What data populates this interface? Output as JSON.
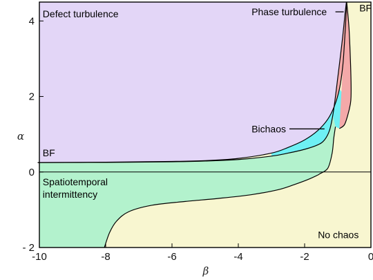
{
  "chart_data": {
    "type": "area",
    "xlabel": "β",
    "ylabel": "α",
    "xlim": [
      -10,
      0
    ],
    "ylim": [
      -2,
      4.5
    ],
    "x_ticks": [
      -10,
      -8,
      -6,
      -4,
      -2,
      0
    ],
    "x_tick_labels": [
      "-10",
      "-8",
      "-6",
      "-4",
      "-2",
      "0"
    ],
    "y_ticks": [
      -2,
      0,
      2,
      4
    ],
    "y_tick_labels": [
      "- 2",
      "0",
      "2",
      "4"
    ],
    "reference_lines": [
      {
        "axis": "y",
        "value": 0
      }
    ],
    "regions": [
      {
        "name": "Defect turbulence",
        "color": "#e3d6f7"
      },
      {
        "name": "Phase turbulence",
        "color": "#f4a9a9"
      },
      {
        "name": "Bichaos",
        "color": "#6ef0f4"
      },
      {
        "name": "Spatiotemporal intermittency",
        "color": "#b3f2cd"
      },
      {
        "name": "No chaos",
        "color": "#f8f6d0"
      }
    ],
    "boundaries": {
      "top_bf": [
        [
          -10.05,
          0.25
        ],
        [
          -8,
          0.26
        ],
        [
          -6,
          0.28
        ],
        [
          -5,
          0.3
        ],
        [
          -4,
          0.36
        ],
        [
          -3,
          0.5
        ],
        [
          -2.5,
          0.65
        ],
        [
          -2,
          0.85
        ],
        [
          -1.6,
          1.1
        ],
        [
          -1.3,
          1.4
        ],
        [
          -1.1,
          1.75
        ],
        [
          -0.95,
          2.2
        ],
        [
          -0.85,
          2.8
        ],
        [
          -0.8,
          3.4
        ],
        [
          -0.76,
          4.0
        ],
        [
          -0.73,
          4.5
        ]
      ],
      "bichaos_lower": [
        [
          -10.05,
          0.25
        ],
        [
          -8,
          0.255
        ],
        [
          -6,
          0.27
        ],
        [
          -5,
          0.29
        ],
        [
          -4,
          0.33
        ],
        [
          -3,
          0.42
        ],
        [
          -2.5,
          0.5
        ],
        [
          -2,
          0.6
        ],
        [
          -1.6,
          0.72
        ],
        [
          -1.4,
          0.85
        ],
        [
          -1.25,
          1.1
        ],
        [
          -1.15,
          1.5
        ],
        [
          -1.07,
          2.0
        ],
        [
          -1.0,
          2.5
        ],
        [
          -0.93,
          3.0
        ],
        [
          -0.85,
          3.6
        ],
        [
          -0.78,
          4.2
        ],
        [
          -0.74,
          4.5
        ]
      ],
      "phase_right": [
        [
          -0.73,
          4.5
        ],
        [
          -0.66,
          3.8
        ],
        [
          -0.62,
          3.0
        ],
        [
          -0.6,
          2.4
        ],
        [
          -0.6,
          2.0
        ],
        [
          -0.62,
          1.8
        ],
        [
          -0.7,
          1.5
        ],
        [
          -0.8,
          1.25
        ],
        [
          -0.95,
          1.15
        ]
      ],
      "sti_boundary": [
        [
          -1.55,
          -0.05
        ],
        [
          -1.3,
          0.1
        ],
        [
          -1.17,
          0.5
        ],
        [
          -1.12,
          0.9
        ],
        [
          -1.07,
          1.2
        ]
      ],
      "lower_curve": [
        [
          -8.04,
          -2.0
        ],
        [
          -7.88,
          -1.6
        ],
        [
          -7.67,
          -1.3
        ],
        [
          -7.3,
          -1.05
        ],
        [
          -6.6,
          -0.88
        ],
        [
          -5.6,
          -0.78
        ],
        [
          -4.6,
          -0.7
        ],
        [
          -3.6,
          -0.6
        ],
        [
          -2.8,
          -0.47
        ],
        [
          -2.3,
          -0.33
        ],
        [
          -1.9,
          -0.2
        ],
        [
          -1.6,
          -0.08
        ],
        [
          -1.55,
          -0.05
        ]
      ]
    },
    "annotations": [
      {
        "text": "Defect turbulence",
        "x": -9.9,
        "y": 4.1
      },
      {
        "text": "Phase turbulence",
        "x": -3.6,
        "y": 4.15,
        "arrow_to": [
          -0.82,
          4.15
        ]
      },
      {
        "text": "BF",
        "x": -0.35,
        "y": 4.25
      },
      {
        "text": "Bichaos",
        "x": -3.6,
        "y": 1.05,
        "arrow_to": [
          -1.4,
          1.05
        ]
      },
      {
        "text": "BF",
        "x": -9.9,
        "y": 0.42
      },
      {
        "text": "Spatiotemporal",
        "x": -9.9,
        "y": -0.35
      },
      {
        "text": "intermittency",
        "x": -9.9,
        "y": -0.68
      },
      {
        "text": "No chaos",
        "x": -1.6,
        "y": -1.75
      }
    ]
  }
}
